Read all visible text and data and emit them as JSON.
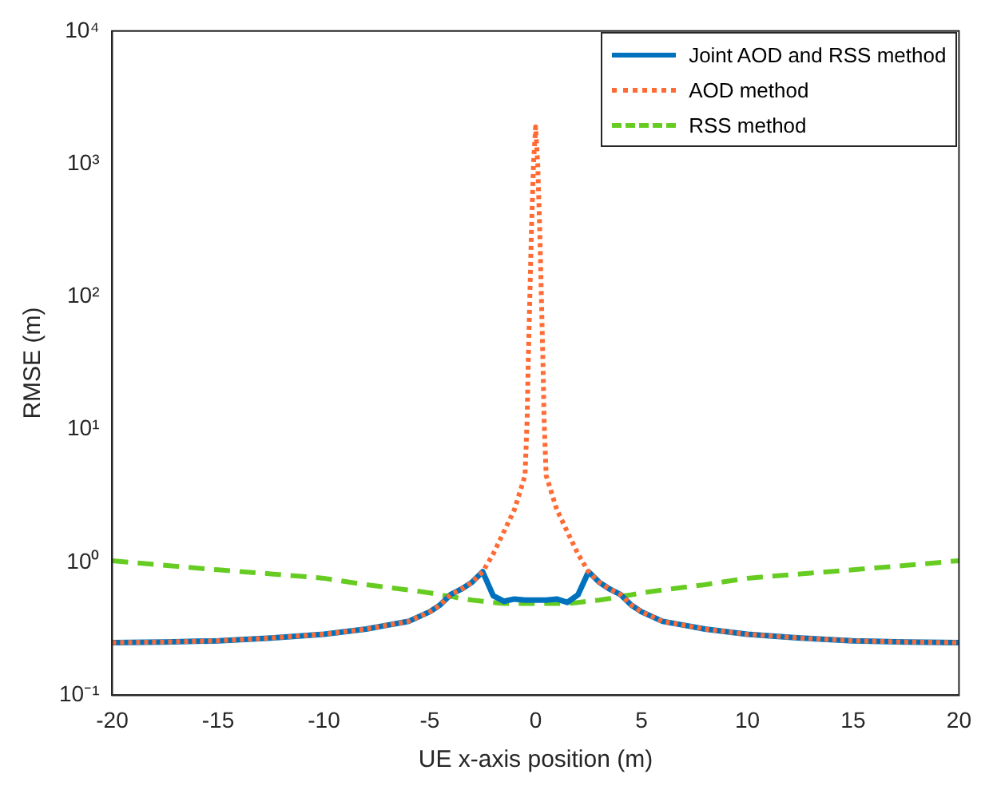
{
  "chart_data": {
    "type": "line",
    "xlabel": "UE x-axis position (m)",
    "ylabel": "RMSE (m)",
    "x": [
      -20,
      -17.5,
      -15,
      -12.5,
      -10,
      -8,
      -7,
      -6,
      -5,
      -4.5,
      -4,
      -3.5,
      -3,
      -2.5,
      -2,
      -1.5,
      -1,
      -0.5,
      -0.4,
      -0.35,
      -0.2,
      -0.1,
      0,
      0.1,
      0.2,
      0.35,
      0.4,
      0.5,
      1,
      1.5,
      2,
      2.5,
      3,
      3.5,
      4,
      4.5,
      5,
      6,
      7,
      8,
      10,
      12.5,
      15,
      17.5,
      20
    ],
    "series": [
      {
        "name": "Joint AOD and RSS method",
        "color": "#0072bd",
        "line_style": "solid",
        "values": [
          0.249,
          0.252,
          0.257,
          0.27,
          0.288,
          0.315,
          0.337,
          0.36,
          0.425,
          0.48,
          0.575,
          0.63,
          0.71,
          0.85,
          0.56,
          0.51,
          0.53,
          0.52,
          0.52,
          0.52,
          0.52,
          0.52,
          0.52,
          0.52,
          0.52,
          0.52,
          0.52,
          0.52,
          0.53,
          0.5,
          0.57,
          0.85,
          0.71,
          0.63,
          0.575,
          0.48,
          0.425,
          0.36,
          0.337,
          0.315,
          0.288,
          0.27,
          0.257,
          0.252,
          0.249
        ]
      },
      {
        "name": "AOD method",
        "color": "#ff6b35",
        "line_style": "dotted",
        "values": [
          0.249,
          0.252,
          0.257,
          0.27,
          0.288,
          0.315,
          0.337,
          0.36,
          0.425,
          0.48,
          0.575,
          0.63,
          0.71,
          0.85,
          1.16,
          1.7,
          2.5,
          4.5,
          12,
          31,
          300,
          1000,
          1900,
          1000,
          300,
          31,
          12,
          4.5,
          2.5,
          1.7,
          1.16,
          0.85,
          0.71,
          0.63,
          0.575,
          0.48,
          0.425,
          0.36,
          0.337,
          0.315,
          0.288,
          0.27,
          0.257,
          0.252,
          0.249
        ]
      },
      {
        "name": "RSS method",
        "color": "#66cc22",
        "line_style": "dashed",
        "values": [
          1.03,
          0.95,
          0.88,
          0.82,
          0.76,
          0.68,
          0.65,
          0.62,
          0.59,
          0.57,
          0.555,
          0.535,
          0.52,
          0.51,
          0.5,
          0.49,
          0.49,
          0.49,
          0.49,
          0.49,
          0.49,
          0.49,
          0.49,
          0.49,
          0.49,
          0.49,
          0.49,
          0.49,
          0.49,
          0.49,
          0.5,
          0.51,
          0.52,
          0.535,
          0.555,
          0.57,
          0.59,
          0.62,
          0.65,
          0.68,
          0.76,
          0.82,
          0.88,
          0.95,
          1.03
        ]
      }
    ],
    "xlim": [
      -20,
      20
    ],
    "xticks": [
      -20,
      -15,
      -10,
      -5,
      0,
      5,
      10,
      15,
      20
    ],
    "ylim": [
      0.1,
      10000
    ],
    "log": "y",
    "yticks": [
      {
        "value": 0.1,
        "label": "10⁻¹"
      },
      {
        "value": 1,
        "label": "10⁰"
      },
      {
        "value": 10,
        "label": "10¹"
      },
      {
        "value": 100,
        "label": "10²"
      },
      {
        "value": 1000,
        "label": "10³"
      },
      {
        "value": 10000,
        "label": "10⁴"
      }
    ],
    "grid": false,
    "legend": "top right",
    "marker": "none"
  }
}
